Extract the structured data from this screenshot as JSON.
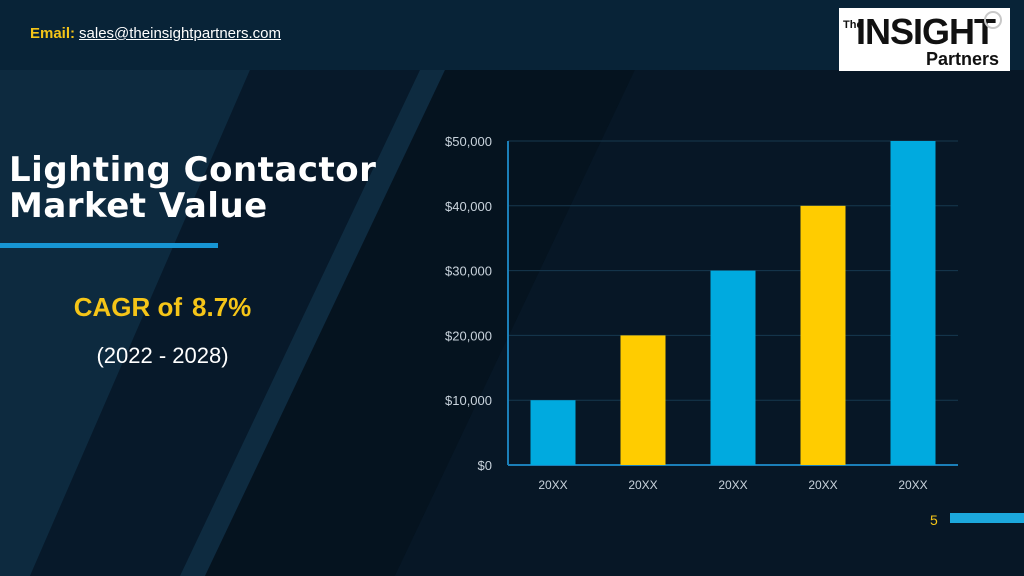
{
  "header": {
    "email_label": "Email:",
    "email_address": "sales@theinsightpartners.com"
  },
  "logo": {
    "the": "The",
    "main": "INSIGHT",
    "sub": "Partners"
  },
  "title": {
    "line1": "Lighting Contactor",
    "line2": "Market Value"
  },
  "cagr": {
    "label": "CAGR of",
    "value": "8.7%"
  },
  "period": "(2022 - 2028)",
  "page_number": "5",
  "colors": {
    "background": "#0b1f30",
    "accent_blue": "#00aadf",
    "accent_yellow": "#ffcc00",
    "title_bar": "#1795d3"
  },
  "chart_data": {
    "type": "bar",
    "categories": [
      "20XX",
      "20XX",
      "20XX",
      "20XX",
      "20XX"
    ],
    "values": [
      10000,
      20000,
      30000,
      40000,
      50000
    ],
    "bar_colors": [
      "#00aadf",
      "#ffcc00",
      "#00aadf",
      "#ffcc00",
      "#00aadf"
    ],
    "ylim": [
      0,
      50000
    ],
    "yticks": [
      "$0",
      "$10,000",
      "$20,000",
      "$30,000",
      "$40,000",
      "$50,000"
    ],
    "title": "",
    "xlabel": "",
    "ylabel": "",
    "grid": true
  }
}
